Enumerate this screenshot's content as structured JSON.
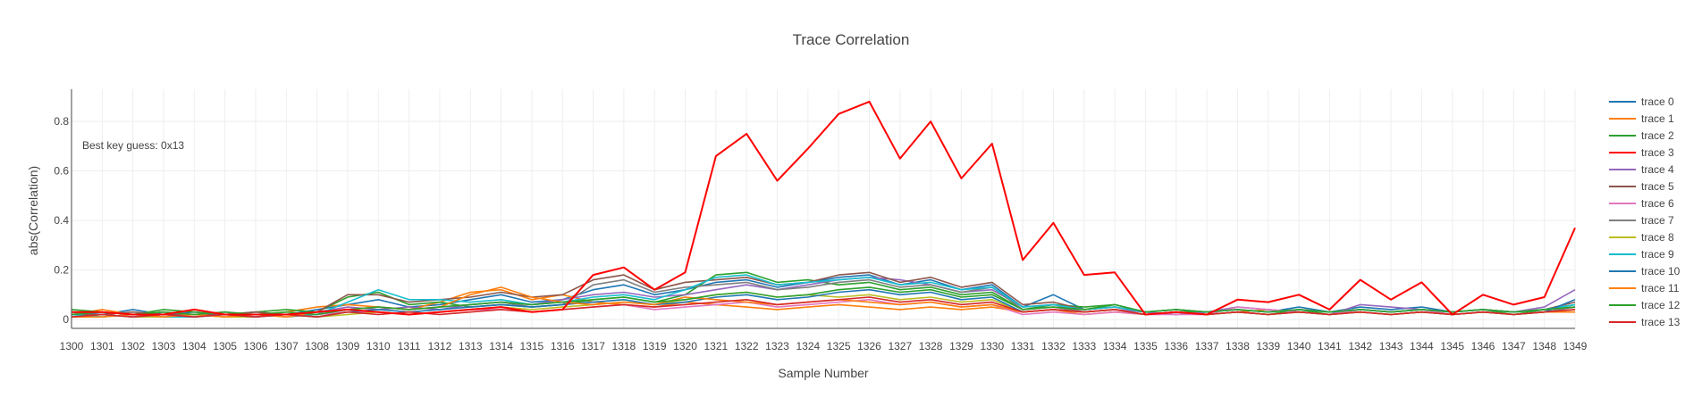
{
  "chart_data": {
    "type": "line",
    "title": "Trace Correlation",
    "xlabel": "Sample Number",
    "ylabel": "abs(Correlation)",
    "annotation": "Best key guess: 0x13",
    "xlim": [
      1300,
      1349
    ],
    "ylim": [
      0,
      0.93
    ],
    "x_ticks": [
      1300,
      1301,
      1302,
      1303,
      1304,
      1305,
      1306,
      1307,
      1308,
      1309,
      1310,
      1311,
      1312,
      1313,
      1314,
      1315,
      1316,
      1317,
      1318,
      1319,
      1320,
      1321,
      1322,
      1323,
      1324,
      1325,
      1326,
      1327,
      1328,
      1329,
      1330,
      1331,
      1332,
      1333,
      1334,
      1335,
      1336,
      1337,
      1338,
      1339,
      1340,
      1341,
      1342,
      1343,
      1344,
      1345,
      1346,
      1347,
      1348,
      1349
    ],
    "y_ticks": [
      0,
      0.2,
      0.4,
      0.6,
      0.8
    ],
    "y_tick_labels": [
      "0",
      "0.2",
      "0.4",
      "0.6",
      "0.8"
    ],
    "grid": true,
    "legend_position": "right",
    "x": [
      1300,
      1301,
      1302,
      1303,
      1304,
      1305,
      1306,
      1307,
      1308,
      1309,
      1310,
      1311,
      1312,
      1313,
      1314,
      1315,
      1316,
      1317,
      1318,
      1319,
      1320,
      1321,
      1322,
      1323,
      1324,
      1325,
      1326,
      1327,
      1328,
      1329,
      1330,
      1331,
      1332,
      1333,
      1334,
      1335,
      1336,
      1337,
      1338,
      1339,
      1340,
      1341,
      1342,
      1343,
      1344,
      1345,
      1346,
      1347,
      1348,
      1349
    ],
    "series": [
      {
        "name": "trace 0",
        "color": "#1f77b4",
        "values": [
          0.03,
          0.02,
          0.04,
          0.02,
          0.03,
          0.02,
          0.03,
          0.02,
          0.04,
          0.06,
          0.08,
          0.05,
          0.06,
          0.08,
          0.1,
          0.07,
          0.08,
          0.12,
          0.14,
          0.1,
          0.12,
          0.15,
          0.16,
          0.13,
          0.15,
          0.17,
          0.18,
          0.14,
          0.16,
          0.12,
          0.14,
          0.05,
          0.1,
          0.04,
          0.05,
          0.03,
          0.02,
          0.03,
          0.04,
          0.03,
          0.05,
          0.03,
          0.05,
          0.04,
          0.05,
          0.03,
          0.04,
          0.03,
          0.04,
          0.05
        ]
      },
      {
        "name": "trace 1",
        "color": "#ff7f0e",
        "values": [
          0.02,
          0.04,
          0.02,
          0.03,
          0.02,
          0.03,
          0.02,
          0.03,
          0.05,
          0.06,
          0.05,
          0.04,
          0.07,
          0.11,
          0.12,
          0.08,
          0.1,
          0.07,
          0.06,
          0.05,
          0.07,
          0.06,
          0.05,
          0.04,
          0.05,
          0.06,
          0.05,
          0.04,
          0.05,
          0.04,
          0.05,
          0.03,
          0.04,
          0.02,
          0.03,
          0.02,
          0.03,
          0.02,
          0.03,
          0.04,
          0.03,
          0.02,
          0.03,
          0.02,
          0.03,
          0.02,
          0.03,
          0.02,
          0.03,
          0.04
        ]
      },
      {
        "name": "trace 2",
        "color": "#2ca02c",
        "values": [
          0.04,
          0.03,
          0.02,
          0.04,
          0.03,
          0.02,
          0.03,
          0.04,
          0.03,
          0.09,
          0.11,
          0.06,
          0.07,
          0.05,
          0.06,
          0.05,
          0.06,
          0.08,
          0.09,
          0.07,
          0.1,
          0.18,
          0.19,
          0.15,
          0.16,
          0.14,
          0.15,
          0.12,
          0.13,
          0.1,
          0.11,
          0.04,
          0.06,
          0.05,
          0.06,
          0.03,
          0.04,
          0.02,
          0.03,
          0.02,
          0.04,
          0.02,
          0.04,
          0.03,
          0.04,
          0.03,
          0.04,
          0.02,
          0.04,
          0.06
        ]
      },
      {
        "name": "trace 3",
        "color": "#ff0000",
        "values": [
          0.03,
          0.03,
          0.02,
          0.02,
          0.04,
          0.02,
          0.02,
          0.02,
          0.03,
          0.04,
          0.03,
          0.02,
          0.03,
          0.04,
          0.05,
          0.03,
          0.04,
          0.18,
          0.21,
          0.12,
          0.19,
          0.66,
          0.75,
          0.56,
          0.69,
          0.83,
          0.88,
          0.65,
          0.8,
          0.57,
          0.71,
          0.24,
          0.39,
          0.18,
          0.19,
          0.02,
          0.03,
          0.02,
          0.08,
          0.07,
          0.1,
          0.04,
          0.16,
          0.08,
          0.15,
          0.02,
          0.1,
          0.06,
          0.09,
          0.37
        ]
      },
      {
        "name": "trace 4",
        "color": "#9467bd",
        "values": [
          0.02,
          0.03,
          0.02,
          0.03,
          0.02,
          0.03,
          0.02,
          0.02,
          0.03,
          0.05,
          0.04,
          0.05,
          0.04,
          0.06,
          0.07,
          0.06,
          0.08,
          0.1,
          0.11,
          0.09,
          0.1,
          0.12,
          0.14,
          0.12,
          0.14,
          0.16,
          0.17,
          0.16,
          0.14,
          0.11,
          0.12,
          0.05,
          0.06,
          0.03,
          0.04,
          0.03,
          0.02,
          0.03,
          0.05,
          0.04,
          0.03,
          0.02,
          0.06,
          0.05,
          0.04,
          0.03,
          0.04,
          0.03,
          0.05,
          0.12
        ]
      },
      {
        "name": "trace 5",
        "color": "#8c564b",
        "values": [
          0.02,
          0.02,
          0.03,
          0.02,
          0.02,
          0.02,
          0.03,
          0.02,
          0.03,
          0.1,
          0.1,
          0.07,
          0.08,
          0.09,
          0.11,
          0.09,
          0.1,
          0.16,
          0.18,
          0.12,
          0.15,
          0.16,
          0.17,
          0.14,
          0.15,
          0.18,
          0.19,
          0.15,
          0.17,
          0.13,
          0.15,
          0.06,
          0.07,
          0.04,
          0.05,
          0.03,
          0.04,
          0.03,
          0.04,
          0.03,
          0.04,
          0.03,
          0.04,
          0.03,
          0.04,
          0.03,
          0.04,
          0.03,
          0.04,
          0.07
        ]
      },
      {
        "name": "trace 6",
        "color": "#e377c2",
        "values": [
          0.01,
          0.02,
          0.01,
          0.02,
          0.01,
          0.02,
          0.01,
          0.02,
          0.02,
          0.03,
          0.03,
          0.02,
          0.03,
          0.04,
          0.04,
          0.03,
          0.04,
          0.05,
          0.06,
          0.04,
          0.05,
          0.06,
          0.07,
          0.05,
          0.06,
          0.07,
          0.08,
          0.06,
          0.07,
          0.05,
          0.06,
          0.02,
          0.03,
          0.02,
          0.03,
          0.02,
          0.02,
          0.02,
          0.05,
          0.04,
          0.03,
          0.02,
          0.04,
          0.03,
          0.04,
          0.02,
          0.03,
          0.02,
          0.03,
          0.04
        ]
      },
      {
        "name": "trace 7",
        "color": "#7f7f7f",
        "values": [
          0.02,
          0.01,
          0.02,
          0.01,
          0.02,
          0.01,
          0.02,
          0.01,
          0.02,
          0.04,
          0.05,
          0.04,
          0.05,
          0.06,
          0.07,
          0.05,
          0.06,
          0.14,
          0.16,
          0.11,
          0.13,
          0.14,
          0.15,
          0.12,
          0.13,
          0.15,
          0.16,
          0.13,
          0.14,
          0.11,
          0.13,
          0.04,
          0.05,
          0.03,
          0.04,
          0.02,
          0.03,
          0.02,
          0.03,
          0.02,
          0.03,
          0.02,
          0.03,
          0.02,
          0.03,
          0.02,
          0.03,
          0.02,
          0.03,
          0.05
        ]
      },
      {
        "name": "trace 8",
        "color": "#bcbd22",
        "values": [
          0.01,
          0.02,
          0.01,
          0.01,
          0.02,
          0.01,
          0.01,
          0.02,
          0.01,
          0.02,
          0.03,
          0.02,
          0.03,
          0.04,
          0.05,
          0.04,
          0.05,
          0.06,
          0.07,
          0.06,
          0.08,
          0.1,
          0.11,
          0.09,
          0.1,
          0.09,
          0.1,
          0.08,
          0.09,
          0.07,
          0.08,
          0.03,
          0.04,
          0.03,
          0.04,
          0.02,
          0.03,
          0.02,
          0.03,
          0.02,
          0.03,
          0.02,
          0.03,
          0.02,
          0.03,
          0.02,
          0.03,
          0.02,
          0.03,
          0.04
        ]
      },
      {
        "name": "trace 9",
        "color": "#17becf",
        "values": [
          0.02,
          0.01,
          0.02,
          0.01,
          0.01,
          0.02,
          0.01,
          0.02,
          0.02,
          0.07,
          0.12,
          0.08,
          0.08,
          0.07,
          0.08,
          0.06,
          0.07,
          0.09,
          0.1,
          0.08,
          0.12,
          0.17,
          0.18,
          0.14,
          0.15,
          0.16,
          0.17,
          0.14,
          0.15,
          0.12,
          0.13,
          0.05,
          0.06,
          0.04,
          0.05,
          0.03,
          0.04,
          0.03,
          0.04,
          0.03,
          0.04,
          0.03,
          0.04,
          0.03,
          0.04,
          0.03,
          0.04,
          0.03,
          0.04,
          0.06
        ]
      },
      {
        "name": "trace 10",
        "color": "#1f77b4",
        "values": [
          0.01,
          0.02,
          0.01,
          0.02,
          0.01,
          0.02,
          0.01,
          0.02,
          0.01,
          0.03,
          0.04,
          0.03,
          0.04,
          0.05,
          0.06,
          0.05,
          0.06,
          0.07,
          0.08,
          0.06,
          0.07,
          0.09,
          0.1,
          0.08,
          0.09,
          0.11,
          0.12,
          0.1,
          0.11,
          0.08,
          0.09,
          0.03,
          0.04,
          0.03,
          0.04,
          0.02,
          0.03,
          0.02,
          0.03,
          0.02,
          0.03,
          0.02,
          0.03,
          0.02,
          0.03,
          0.02,
          0.03,
          0.02,
          0.03,
          0.08
        ]
      },
      {
        "name": "trace 11",
        "color": "#ff7f0e",
        "values": [
          0.01,
          0.01,
          0.02,
          0.01,
          0.02,
          0.01,
          0.02,
          0.01,
          0.03,
          0.04,
          0.05,
          0.04,
          0.05,
          0.1,
          0.13,
          0.09,
          0.07,
          0.06,
          0.07,
          0.06,
          0.09,
          0.08,
          0.07,
          0.06,
          0.07,
          0.08,
          0.07,
          0.06,
          0.07,
          0.05,
          0.06,
          0.03,
          0.04,
          0.03,
          0.04,
          0.02,
          0.03,
          0.02,
          0.03,
          0.02,
          0.03,
          0.02,
          0.03,
          0.02,
          0.03,
          0.02,
          0.03,
          0.02,
          0.03,
          0.03
        ]
      },
      {
        "name": "trace 12",
        "color": "#2ca02c",
        "values": [
          0.02,
          0.03,
          0.02,
          0.03,
          0.02,
          0.03,
          0.02,
          0.03,
          0.02,
          0.04,
          0.05,
          0.04,
          0.05,
          0.06,
          0.07,
          0.06,
          0.07,
          0.08,
          0.09,
          0.07,
          0.08,
          0.1,
          0.11,
          0.09,
          0.1,
          0.12,
          0.13,
          0.11,
          0.12,
          0.09,
          0.1,
          0.04,
          0.05,
          0.04,
          0.06,
          0.03,
          0.04,
          0.03,
          0.04,
          0.03,
          0.04,
          0.03,
          0.04,
          0.03,
          0.04,
          0.03,
          0.04,
          0.03,
          0.04,
          0.05
        ]
      },
      {
        "name": "trace 13",
        "color": "#d62728",
        "values": [
          0.01,
          0.02,
          0.01,
          0.02,
          0.01,
          0.02,
          0.01,
          0.02,
          0.01,
          0.03,
          0.02,
          0.03,
          0.02,
          0.03,
          0.04,
          0.03,
          0.04,
          0.05,
          0.06,
          0.05,
          0.06,
          0.07,
          0.08,
          0.06,
          0.07,
          0.08,
          0.09,
          0.07,
          0.08,
          0.06,
          0.07,
          0.03,
          0.04,
          0.03,
          0.04,
          0.02,
          0.03,
          0.02,
          0.03,
          0.02,
          0.03,
          0.02,
          0.03,
          0.02,
          0.03,
          0.02,
          0.03,
          0.02,
          0.03,
          0.04
        ]
      }
    ]
  }
}
